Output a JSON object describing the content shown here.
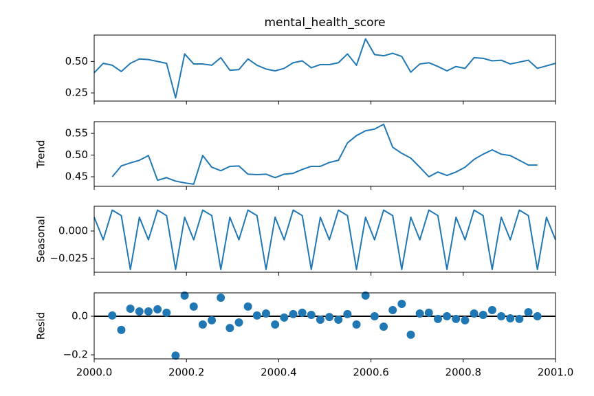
{
  "chart_data": [
    {
      "type": "line",
      "title": "mental_health_score",
      "color": "#1f77b4",
      "x": [
        2000.0,
        2000.0196,
        2000.0392,
        2000.0588,
        2000.0784,
        2000.098,
        2000.1176,
        2000.1373,
        2000.1569,
        2000.1765,
        2000.1961,
        2000.2157,
        2000.2353,
        2000.2549,
        2000.2745,
        2000.2941,
        2000.3137,
        2000.3333,
        2000.3529,
        2000.3725,
        2000.3922,
        2000.4118,
        2000.4314,
        2000.451,
        2000.4706,
        2000.4902,
        2000.5098,
        2000.5294,
        2000.549,
        2000.5686,
        2000.5882,
        2000.6078,
        2000.6275,
        2000.6471,
        2000.6667,
        2000.6863,
        2000.7059,
        2000.7255,
        2000.7451,
        2000.7647,
        2000.7843,
        2000.8039,
        2000.8235,
        2000.8431,
        2000.8627,
        2000.8824,
        2000.902,
        2000.9216,
        2000.9412,
        2000.9608,
        2000.9804,
        2001.0
      ],
      "values": [
        0.41,
        0.485,
        0.47,
        0.42,
        0.485,
        0.52,
        0.515,
        0.5,
        0.485,
        0.21,
        0.56,
        0.48,
        0.48,
        0.47,
        0.53,
        0.43,
        0.435,
        0.52,
        0.47,
        0.44,
        0.425,
        0.445,
        0.49,
        0.505,
        0.45,
        0.475,
        0.475,
        0.49,
        0.56,
        0.47,
        0.68,
        0.555,
        0.545,
        0.565,
        0.54,
        0.415,
        0.48,
        0.49,
        0.46,
        0.425,
        0.46,
        0.445,
        0.53,
        0.525,
        0.505,
        0.51,
        0.48,
        0.495,
        0.51,
        0.445,
        0.465,
        0.485
      ],
      "xlim": [
        2000.0,
        2001.0
      ],
      "ylim": [
        0.185,
        0.71
      ],
      "yticks": [
        0.25,
        {
          "value": 0.5,
          "label": "0.50"
        }
      ]
    },
    {
      "type": "line",
      "y_label": "Trend",
      "color": "#1f77b4",
      "x": [
        2000.0,
        2000.0196,
        2000.0392,
        2000.0588,
        2000.0784,
        2000.098,
        2000.1176,
        2000.1373,
        2000.1569,
        2000.1765,
        2000.1961,
        2000.2157,
        2000.2353,
        2000.2549,
        2000.2745,
        2000.2941,
        2000.3137,
        2000.3333,
        2000.3529,
        2000.3725,
        2000.3922,
        2000.4118,
        2000.4314,
        2000.451,
        2000.4706,
        2000.4902,
        2000.5098,
        2000.5294,
        2000.549,
        2000.5686,
        2000.5882,
        2000.6078,
        2000.6275,
        2000.6471,
        2000.6667,
        2000.6863,
        2000.7059,
        2000.7255,
        2000.7451,
        2000.7647,
        2000.7843,
        2000.8039,
        2000.8235,
        2000.8431,
        2000.8627,
        2000.8824,
        2000.902,
        2000.9216,
        2000.9412,
        2000.9608,
        2000.9804,
        2001.0
      ],
      "values": [
        null,
        null,
        0.45,
        0.475,
        0.482,
        0.488,
        0.499,
        0.442,
        0.448,
        0.44,
        0.436,
        0.433,
        0.499,
        0.472,
        0.464,
        0.474,
        0.475,
        0.456,
        0.455,
        0.456,
        0.448,
        0.456,
        0.458,
        0.467,
        0.474,
        0.474,
        0.483,
        0.488,
        0.528,
        0.545,
        0.556,
        0.56,
        0.571,
        0.518,
        0.504,
        0.493,
        0.472,
        0.45,
        0.461,
        0.453,
        0.461,
        0.472,
        0.49,
        0.502,
        0.512,
        0.502,
        0.499,
        0.488,
        0.477,
        0.477,
        null,
        null
      ],
      "xlim": [
        2000.0,
        2001.0
      ],
      "ylim": [
        0.428,
        0.577
      ],
      "yticks": [
        0.45,
        {
          "value": 0.5,
          "label": "0.50"
        },
        0.55
      ]
    },
    {
      "type": "line",
      "y_label": "Seasonal",
      "color": "#1f77b4",
      "x": [
        2000.0,
        2000.0196,
        2000.0392,
        2000.0588,
        2000.0784,
        2000.098,
        2000.1176,
        2000.1373,
        2000.1569,
        2000.1765,
        2000.1961,
        2000.2157,
        2000.2353,
        2000.2549,
        2000.2745,
        2000.2941,
        2000.3137,
        2000.3333,
        2000.3529,
        2000.3725,
        2000.3922,
        2000.4118,
        2000.4314,
        2000.451,
        2000.4706,
        2000.4902,
        2000.5098,
        2000.5294,
        2000.549,
        2000.5686,
        2000.5882,
        2000.6078,
        2000.6275,
        2000.6471,
        2000.6667,
        2000.6863,
        2000.7059,
        2000.7255,
        2000.7451,
        2000.7647,
        2000.7843,
        2000.8039,
        2000.8235,
        2000.8431,
        2000.8627,
        2000.8824,
        2000.902,
        2000.9216,
        2000.9412,
        2000.9608,
        2000.9804,
        2001.0
      ],
      "values": [
        0.0125,
        -0.008,
        0.019,
        0.014,
        -0.035,
        0.0125,
        -0.008,
        0.019,
        0.014,
        -0.035,
        0.0125,
        -0.008,
        0.019,
        0.014,
        -0.035,
        0.0125,
        -0.008,
        0.019,
        0.014,
        -0.035,
        0.0125,
        -0.008,
        0.019,
        0.014,
        -0.035,
        0.0125,
        -0.008,
        0.019,
        0.014,
        -0.035,
        0.0125,
        -0.008,
        0.019,
        0.014,
        -0.035,
        0.0125,
        -0.008,
        0.019,
        0.014,
        -0.035,
        0.0125,
        -0.008,
        0.019,
        0.014,
        -0.035,
        0.0125,
        -0.008,
        0.019,
        0.014,
        -0.035,
        0.0125,
        -0.008
      ],
      "xlim": [
        2000.0,
        2001.0
      ],
      "ylim": [
        -0.0375,
        0.0225
      ],
      "yticks": [
        {
          "value": -0.025,
          "label": "−0.025"
        },
        {
          "value": 0,
          "label": "0.000"
        }
      ]
    },
    {
      "type": "scatter",
      "y_label": "Resid",
      "color": "#1f77b4",
      "zero_line": true,
      "x": [
        2000.0,
        2000.0196,
        2000.0392,
        2000.0588,
        2000.0784,
        2000.098,
        2000.1176,
        2000.1373,
        2000.1569,
        2000.1765,
        2000.1961,
        2000.2157,
        2000.2353,
        2000.2549,
        2000.2745,
        2000.2941,
        2000.3137,
        2000.3333,
        2000.3529,
        2000.3725,
        2000.3922,
        2000.4118,
        2000.4314,
        2000.451,
        2000.4706,
        2000.4902,
        2000.5098,
        2000.5294,
        2000.549,
        2000.5686,
        2000.5882,
        2000.6078,
        2000.6275,
        2000.6471,
        2000.6667,
        2000.6863,
        2000.7059,
        2000.7255,
        2000.7451,
        2000.7647,
        2000.7843,
        2000.8039,
        2000.8235,
        2000.8431,
        2000.8627,
        2000.8824,
        2000.902,
        2000.9216,
        2000.9412,
        2000.9608,
        2000.9804,
        2001.0
      ],
      "values": [
        null,
        null,
        0.004,
        -0.071,
        0.039,
        0.025,
        0.025,
        0.036,
        0.018,
        -0.204,
        0.107,
        0.05,
        -0.043,
        -0.021,
        0.096,
        -0.061,
        -0.032,
        0.05,
        0.004,
        0.014,
        -0.043,
        -0.007,
        0.011,
        0.018,
        0.007,
        -0.018,
        -0.004,
        -0.018,
        0.011,
        -0.043,
        0.107,
        0.0,
        -0.054,
        0.032,
        0.064,
        -0.096,
        0.014,
        0.018,
        -0.014,
        0.0,
        -0.014,
        -0.021,
        0.014,
        0.007,
        0.032,
        0.0,
        -0.011,
        -0.014,
        0.021,
        0.0,
        null,
        null
      ],
      "xlim": [
        2000.0,
        2001.0
      ],
      "ylim": [
        -0.221,
        0.121
      ],
      "yticks": [
        {
          "value": -0.2,
          "label": "−0.2"
        },
        {
          "value": 0,
          "label": "0.0"
        }
      ],
      "xticks": [
        {
          "value": 2000.0,
          "label": "2000.0"
        },
        {
          "value": 2000.2,
          "label": "2000.2"
        },
        {
          "value": 2000.4,
          "label": "2000.4"
        },
        {
          "value": 2000.6,
          "label": "2000.6"
        },
        {
          "value": 2000.8,
          "label": "2000.8"
        },
        {
          "value": 2001.0,
          "label": "2001.0"
        }
      ]
    }
  ]
}
